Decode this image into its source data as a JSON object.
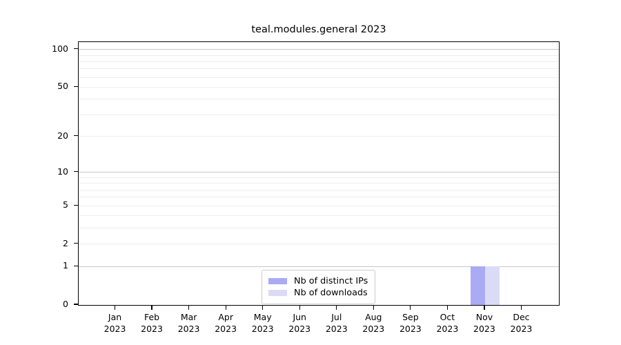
{
  "window": {
    "background": "#ffffff"
  },
  "chart_data": {
    "type": "bar",
    "title": "teal.modules.general 2023",
    "categories": [
      {
        "month": "Jan",
        "year": "2023"
      },
      {
        "month": "Feb",
        "year": "2023"
      },
      {
        "month": "Mar",
        "year": "2023"
      },
      {
        "month": "Apr",
        "year": "2023"
      },
      {
        "month": "May",
        "year": "2023"
      },
      {
        "month": "Jun",
        "year": "2023"
      },
      {
        "month": "Jul",
        "year": "2023"
      },
      {
        "month": "Aug",
        "year": "2023"
      },
      {
        "month": "Sep",
        "year": "2023"
      },
      {
        "month": "Oct",
        "year": "2023"
      },
      {
        "month": "Nov",
        "year": "2023"
      },
      {
        "month": "Dec",
        "year": "2023"
      }
    ],
    "series": [
      {
        "name": "Nb of distinct IPs",
        "color": "#aaaaf5",
        "values": [
          0,
          0,
          0,
          0,
          0,
          0,
          0,
          0,
          0,
          0,
          1,
          0
        ]
      },
      {
        "name": "Nb of downloads",
        "color": "#dbdbf8",
        "values": [
          0,
          0,
          0,
          0,
          0,
          0,
          0,
          0,
          0,
          0,
          1,
          0
        ]
      }
    ],
    "xlabel": "",
    "ylabel": "",
    "y_scale": "log1p",
    "ylim": [
      0,
      114.3
    ],
    "y_ticks": [
      0,
      1,
      2,
      5,
      10,
      20,
      50,
      100
    ],
    "y_major_grid": [
      1,
      10,
      100
    ],
    "y_minor_grid": [
      2,
      3,
      4,
      5,
      6,
      7,
      8,
      9,
      20,
      30,
      40,
      50,
      60,
      70,
      80,
      90
    ],
    "grid": "horizontal",
    "legend_position": "lower center",
    "colors": {
      "axis": "#000000",
      "text": "#000000",
      "major_grid": "#c6c6c6",
      "minor_grid": "#ededed",
      "plot_background": "#ffffff"
    }
  }
}
